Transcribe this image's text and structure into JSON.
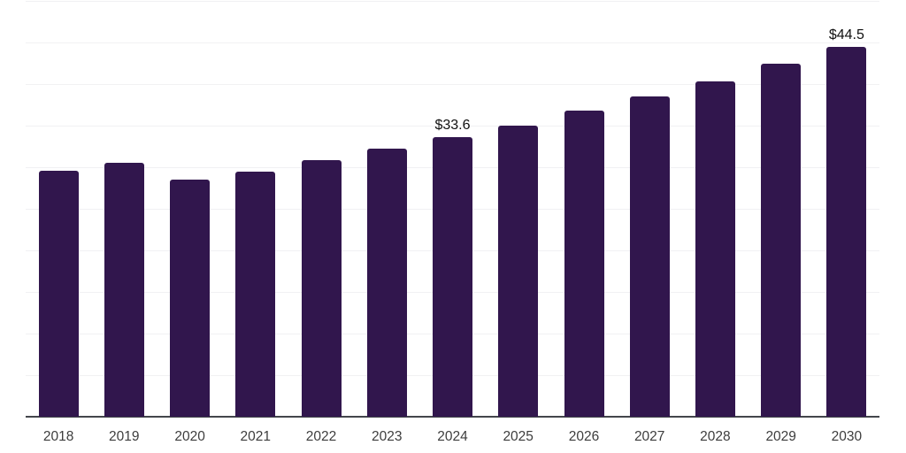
{
  "chart_data": {
    "type": "bar",
    "title": "",
    "xlabel": "",
    "ylabel": "",
    "categories": [
      "2018",
      "2019",
      "2020",
      "2021",
      "2022",
      "2023",
      "2024",
      "2025",
      "2026",
      "2027",
      "2028",
      "2029",
      "2030"
    ],
    "values": [
      29.6,
      30.5,
      28.5,
      29.5,
      30.9,
      32.2,
      33.6,
      35.0,
      36.8,
      38.5,
      40.3,
      42.4,
      44.5
    ],
    "data_labels": [
      "",
      "",
      "",
      "",
      "",
      "",
      "$33.6",
      "",
      "",
      "",
      "",
      "",
      "$44.5"
    ],
    "ylim": [
      0,
      50
    ],
    "gridline_step": 5,
    "grid": "horizontal-only",
    "legend": "none",
    "y_axis_labels_visible": false,
    "styles": {
      "bar_color": "#31164d",
      "value_label_color": "#101010",
      "tick_label_color": "#3d3d3d",
      "gridline_color": "#f1f1f3",
      "axis_line_color": "#43464b",
      "background_color": "#ffffff"
    }
  }
}
